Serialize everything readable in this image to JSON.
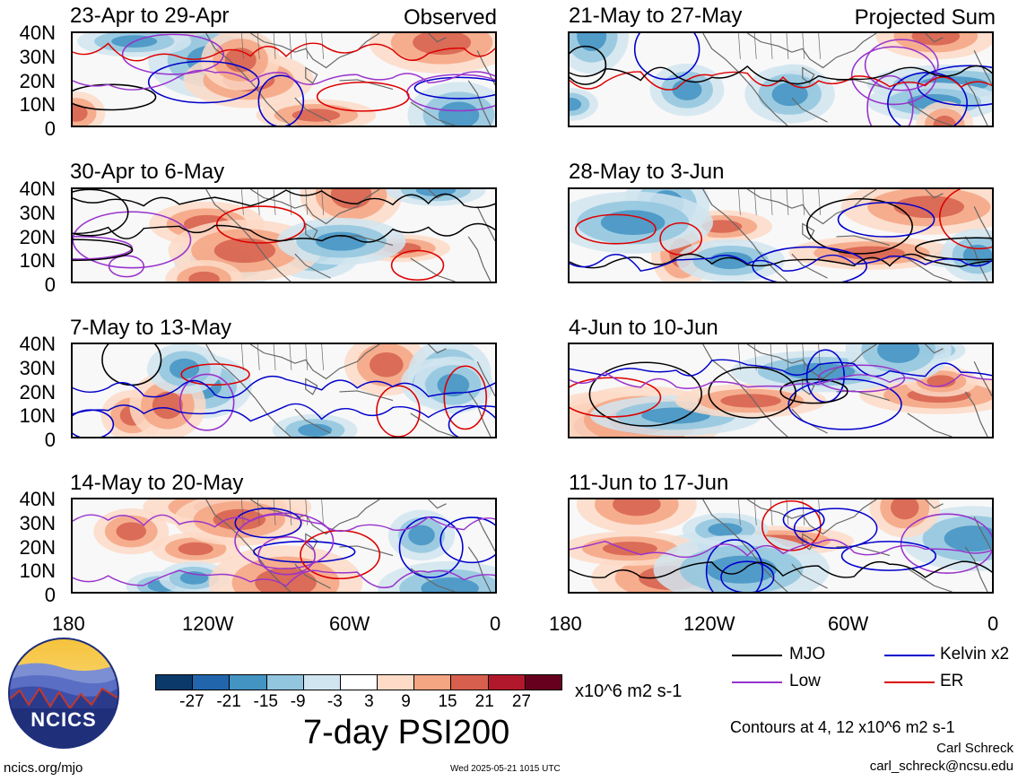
{
  "panels": [
    {
      "title": "23-Apr to 29-Apr",
      "corner": "Observed",
      "col": 0,
      "row": 0
    },
    {
      "title": "30-Apr to 6-May",
      "corner": "",
      "col": 0,
      "row": 1
    },
    {
      "title": "7-May to 13-May",
      "corner": "",
      "col": 0,
      "row": 2
    },
    {
      "title": "14-May to 20-May",
      "corner": "",
      "col": 0,
      "row": 3
    },
    {
      "title": "21-May to 27-May",
      "corner": "Projected Sum",
      "col": 1,
      "row": 0
    },
    {
      "title": "28-May to 3-Jun",
      "corner": "",
      "col": 1,
      "row": 1
    },
    {
      "title": "4-Jun to 10-Jun",
      "corner": "",
      "col": 1,
      "row": 2
    },
    {
      "title": "11-Jun to 17-Jun",
      "corner": "",
      "col": 1,
      "row": 3
    }
  ],
  "lat_labels": [
    "40N",
    "30N",
    "20N",
    "10N",
    "0"
  ],
  "lon_labels": [
    "180",
    "120W",
    "60W",
    "0"
  ],
  "colorbar": {
    "labels": [
      "-27",
      "-21",
      "-15",
      "-9",
      "-3",
      "3",
      "9",
      "15",
      "21",
      "27"
    ],
    "colors": [
      "#0b3a6a",
      "#2166ac",
      "#4393c3",
      "#92c5de",
      "#d1e5f0",
      "#ffffff",
      "#fddbc7",
      "#f4a582",
      "#d6604d",
      "#b2182b",
      "#67001f"
    ],
    "units": "x10^6 m2 s-1"
  },
  "main_title": "7-day PSI200",
  "legend": [
    {
      "label": "MJO",
      "color": "#000000"
    },
    {
      "label": "Kelvin x2",
      "color": "#0000cc"
    },
    {
      "label": "Low",
      "color": "#9933cc"
    },
    {
      "label": "ER",
      "color": "#dd0000"
    }
  ],
  "contour_note": "Contours at 4, 12 x10^6 m2 s-1",
  "author": "Carl Schreck",
  "email": "carl_schreck@ncsu.edu",
  "site": "ncics.org/mjo",
  "timestamp": "Wed 2025-05-21 1015 UTC",
  "logo_text": "NCICS"
}
